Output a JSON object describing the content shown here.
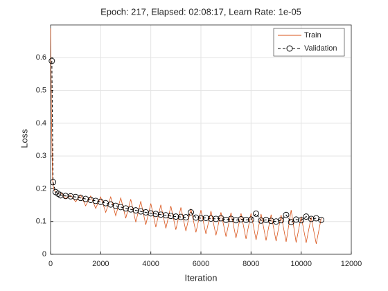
{
  "chart_data": {
    "type": "line",
    "title": "Epoch: 217, Elapsed: 02:08:17, Learn Rate: 1e-05",
    "x_label": "Iteration",
    "y_label": "Loss",
    "xlim": [
      0,
      12000
    ],
    "xticks": [
      0,
      2000,
      4000,
      6000,
      8000,
      10000,
      12000
    ],
    "ylim": [
      0,
      0.7
    ],
    "yticks": [
      0,
      0.1,
      0.2,
      0.3,
      0.4,
      0.5,
      0.6
    ],
    "grid": true,
    "legend": "top-right",
    "series": [
      {
        "name": "Train",
        "color": "#d95319",
        "x": [
          0,
          20,
          40,
          60,
          80,
          100,
          150,
          200,
          300,
          400,
          600,
          800,
          1000,
          1200,
          1400,
          1600,
          1800,
          2000,
          2200,
          2400,
          2600,
          2800,
          3000,
          3200,
          3400,
          3600,
          3800,
          4000,
          4200,
          4400,
          4600,
          4800,
          5000,
          5200,
          5400,
          5600,
          5800,
          6000,
          6200,
          6400,
          6600,
          6800,
          7000,
          7200,
          7400,
          7600,
          7800,
          8000,
          8200,
          8400,
          8600,
          8800,
          9000,
          9200,
          9400,
          9600,
          9800,
          10000,
          10200,
          10400,
          10600,
          10800
        ],
        "values": [
          0.69,
          0.55,
          0.4,
          0.3,
          0.23,
          0.21,
          0.195,
          0.19,
          0.185,
          0.188,
          0.17,
          0.181,
          0.16,
          0.181,
          0.148,
          0.178,
          0.14,
          0.175,
          0.128,
          0.175,
          0.118,
          0.172,
          0.11,
          0.168,
          0.098,
          0.162,
          0.09,
          0.155,
          0.083,
          0.151,
          0.079,
          0.147,
          0.075,
          0.143,
          0.071,
          0.139,
          0.067,
          0.135,
          0.062,
          0.132,
          0.058,
          0.128,
          0.054,
          0.127,
          0.05,
          0.125,
          0.047,
          0.125,
          0.044,
          0.123,
          0.042,
          0.121,
          0.04,
          0.12,
          0.038,
          0.135,
          0.036,
          0.115,
          0.035,
          0.113,
          0.032,
          0.11
        ]
      },
      {
        "name": "Validation",
        "color": "#000000",
        "x": [
          50,
          100,
          200,
          300,
          400,
          600,
          800,
          1000,
          1200,
          1400,
          1600,
          1800,
          2000,
          2200,
          2400,
          2600,
          2800,
          3000,
          3200,
          3400,
          3600,
          3800,
          4000,
          4200,
          4400,
          4600,
          4800,
          5000,
          5200,
          5400,
          5600,
          5800,
          6000,
          6200,
          6400,
          6600,
          6800,
          7000,
          7200,
          7400,
          7600,
          7800,
          8000,
          8200,
          8400,
          8600,
          8800,
          9000,
          9200,
          9400,
          9600,
          9800,
          10000,
          10200,
          10400,
          10600,
          10800
        ],
        "values": [
          0.59,
          0.22,
          0.19,
          0.185,
          0.18,
          0.178,
          0.177,
          0.175,
          0.172,
          0.169,
          0.166,
          0.163,
          0.16,
          0.156,
          0.152,
          0.148,
          0.144,
          0.14,
          0.137,
          0.134,
          0.131,
          0.128,
          0.125,
          0.123,
          0.121,
          0.119,
          0.117,
          0.115,
          0.114,
          0.113,
          0.128,
          0.112,
          0.11,
          0.111,
          0.109,
          0.108,
          0.11,
          0.105,
          0.108,
          0.104,
          0.107,
          0.105,
          0.106,
          0.124,
          0.103,
          0.105,
          0.102,
          0.1,
          0.104,
          0.12,
          0.098,
          0.106,
          0.104,
          0.115,
          0.108,
          0.11,
          0.105
        ]
      }
    ]
  }
}
